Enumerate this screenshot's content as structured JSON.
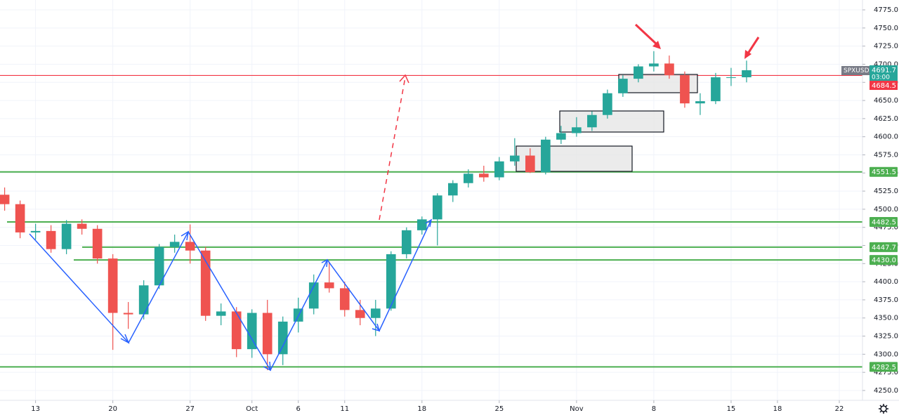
{
  "chart_data": {
    "type": "candlestick",
    "symbol": "SPXUSD",
    "countdown": "03:00",
    "x": [
      -2,
      -1,
      0,
      1,
      2,
      3,
      4,
      5,
      6,
      7,
      8,
      9,
      10,
      11,
      12,
      13,
      14,
      15,
      16,
      17,
      18,
      19,
      20,
      21,
      22,
      23,
      24,
      25,
      26,
      27,
      28,
      29,
      30,
      31,
      32,
      33,
      34,
      35,
      36,
      37,
      38,
      39,
      40,
      41,
      42,
      43,
      44,
      45,
      46
    ],
    "open": [
      4520,
      4507,
      4468,
      4470,
      4445,
      4480,
      4473,
      4432,
      4357,
      4355,
      4395,
      4448,
      4455,
      4443,
      4353,
      4359,
      4307,
      4357,
      4300,
      4345,
      4363,
      4399,
      4391,
      4361,
      4350,
      4363,
      4438,
      4471,
      4486,
      4519,
      4536,
      4549,
      4544,
      4566,
      4574,
      4551,
      4596,
      4605,
      4613,
      4630,
      4660,
      4680,
      4697,
      4701,
      4685,
      4646,
      4649,
      4682,
      4682
    ],
    "high": [
      4530,
      4512,
      4480,
      4478,
      4485,
      4486,
      4478,
      4438,
      4372,
      4402,
      4452,
      4465,
      4479,
      4448,
      4370,
      4365,
      4362,
      4375,
      4352,
      4378,
      4410,
      4428,
      4400,
      4375,
      4375,
      4442,
      4475,
      4490,
      4522,
      4540,
      4555,
      4560,
      4572,
      4598,
      4584,
      4600,
      4615,
      4627,
      4635,
      4665,
      4685,
      4700,
      4718,
      4712,
      4690,
      4660,
      4688,
      4695,
      4705
    ],
    "low": [
      4498,
      4460,
      4458,
      4440,
      4438,
      4465,
      4425,
      4306,
      4335,
      4348,
      4390,
      4440,
      4425,
      4346,
      4340,
      4296,
      4295,
      4278,
      4285,
      4330,
      4355,
      4385,
      4352,
      4340,
      4325,
      4360,
      4432,
      4465,
      4450,
      4510,
      4530,
      4538,
      4540,
      4560,
      4550,
      4548,
      4590,
      4600,
      4608,
      4625,
      4655,
      4675,
      4690,
      4680,
      4640,
      4630,
      4645,
      4670,
      4675
    ],
    "close": [
      4507,
      4468,
      4470,
      4445,
      4480,
      4473,
      4432,
      4357,
      4355,
      4395,
      4448,
      4455,
      4443,
      4353,
      4359,
      4307,
      4357,
      4300,
      4345,
      4363,
      4399,
      4391,
      4361,
      4350,
      4363,
      4438,
      4471,
      4486,
      4519,
      4536,
      4549,
      4544,
      4566,
      4574,
      4551,
      4596,
      4605,
      4613,
      4630,
      4660,
      4680,
      4697,
      4701,
      4685,
      4646,
      4649,
      4682,
      4682,
      4691.7
    ],
    "up_color": "#26a69a",
    "down_color": "#ef5350",
    "levels": [
      4551.5,
      4482.5,
      4447.7,
      {
        "value": 4430,
        "label": "4430.0"
      },
      4282.5
    ],
    "level_color": "#4caf50",
    "reference_line": 4684.5,
    "reference_color": "#f23645",
    "xlim": [
      -2.3,
      53.5
    ],
    "xticks": [
      {
        "value": 0,
        "label": "13"
      },
      {
        "value": 5,
        "label": "20"
      },
      {
        "value": 10,
        "label": "27"
      },
      {
        "value": 14,
        "label": "Oct"
      },
      {
        "value": 17,
        "label": "6"
      },
      {
        "value": 20,
        "label": "11"
      },
      {
        "value": 25,
        "label": "18"
      },
      {
        "value": 30,
        "label": "25"
      },
      {
        "value": 35,
        "label": "Nov"
      },
      {
        "value": 40,
        "label": "8"
      },
      {
        "value": 45,
        "label": "15"
      },
      {
        "value": 48,
        "label": "18"
      },
      {
        "value": 52,
        "label": "22"
      }
    ],
    "ylim": [
      4236.4,
      4788.6
    ],
    "yticks": [
      {
        "value": 4250,
        "label": "4250.0"
      },
      {
        "value": 4275,
        "label": "4275.0"
      },
      {
        "value": 4300,
        "label": "4300.0"
      },
      {
        "value": 4325,
        "label": "4325.0"
      },
      {
        "value": 4350,
        "label": "4350.0"
      },
      {
        "value": 4375,
        "label": "4375.0"
      },
      {
        "value": 4400,
        "label": "4400.0"
      },
      {
        "value": 4425,
        "label": "4425.0"
      },
      {
        "value": 4450,
        "label": "4450.0"
      },
      {
        "value": 4475,
        "label": "4475.0"
      },
      {
        "value": 4500,
        "label": "4500.0"
      },
      {
        "value": 4525,
        "label": "4525.0"
      },
      {
        "value": 4550,
        "label": "4550.0"
      },
      {
        "value": 4575,
        "label": "4575.0"
      },
      {
        "value": 4600,
        "label": "4600.0"
      },
      {
        "value": 4625,
        "label": "4625.0"
      },
      {
        "value": 4650,
        "label": "4650.0"
      },
      {
        "value": 4675,
        "label": "4675.0"
      },
      {
        "value": 4700,
        "label": "4700.0"
      },
      {
        "value": 4725,
        "label": "4725.0"
      },
      {
        "value": 4750,
        "label": "4750.0"
      },
      {
        "value": 4775,
        "label": "4775.0"
      }
    ],
    "grid": true
  }
}
